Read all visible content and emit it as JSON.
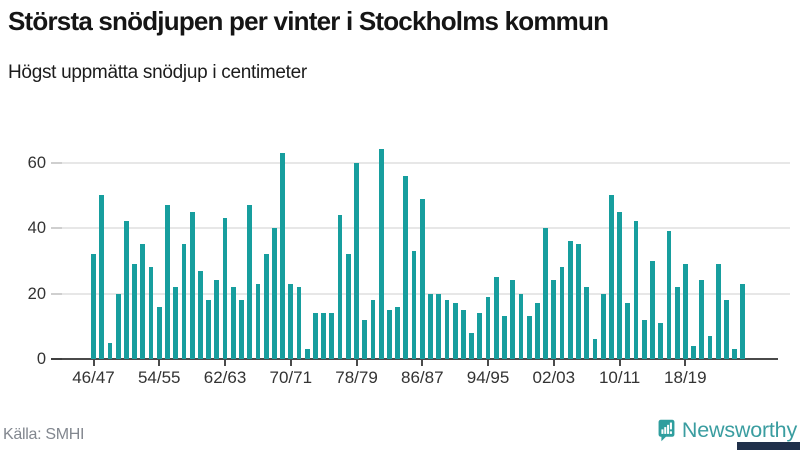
{
  "header": {
    "title": "Största snödjupen per vinter i Stockholms kommun",
    "subtitle": "Högst uppmätta snödjup i centimeter"
  },
  "chart_data": {
    "type": "bar",
    "title": "Största snödjupen per vinter i Stockholms kommun",
    "subtitle": "Högst uppmätta snödjup i centimeter",
    "xlabel": "",
    "ylabel": "cm",
    "ylim": [
      0,
      65
    ],
    "grid": true,
    "legend_position": "none",
    "bar_color": "#179e9e",
    "y_ticks": [
      0,
      20,
      40,
      60
    ],
    "x_tick_labels": [
      "46/47",
      "54/55",
      "62/63",
      "70/71",
      "78/79",
      "86/87",
      "94/95",
      "02/03",
      "10/11",
      "18/19"
    ],
    "x_tick_every": 8,
    "categories": [
      "46/47",
      "47/48",
      "48/49",
      "49/50",
      "50/51",
      "51/52",
      "52/53",
      "53/54",
      "54/55",
      "55/56",
      "56/57",
      "57/58",
      "58/59",
      "59/60",
      "60/61",
      "61/62",
      "62/63",
      "63/64",
      "64/65",
      "65/66",
      "66/67",
      "67/68",
      "68/69",
      "69/70",
      "70/71",
      "71/72",
      "72/73",
      "73/74",
      "74/75",
      "75/76",
      "76/77",
      "77/78",
      "78/79",
      "79/80",
      "80/81",
      "81/82",
      "82/83",
      "83/84",
      "84/85",
      "85/86",
      "86/87",
      "87/88",
      "88/89",
      "89/90",
      "90/91",
      "91/92",
      "92/93",
      "93/94",
      "94/95",
      "95/96",
      "96/97",
      "97/98",
      "98/99",
      "99/00",
      "00/01",
      "01/02",
      "02/03",
      "03/04",
      "04/05",
      "05/06",
      "06/07",
      "07/08",
      "08/09",
      "09/10",
      "10/11",
      "11/12",
      "12/13",
      "13/14",
      "14/15",
      "15/16",
      "16/17",
      "17/18",
      "18/19",
      "19/20",
      "20/21",
      "21/22",
      "22/23",
      "23/24",
      "24/25",
      "25/26"
    ],
    "values": [
      32,
      50,
      5,
      20,
      42,
      29,
      35,
      28,
      16,
      47,
      22,
      35,
      45,
      27,
      18,
      24,
      43,
      22,
      18,
      47,
      23,
      32,
      40,
      63,
      23,
      22,
      3,
      14,
      14,
      14,
      44,
      32,
      60,
      12,
      18,
      64,
      15,
      16,
      56,
      33,
      49,
      20,
      20,
      18,
      17,
      15,
      8,
      14,
      19,
      25,
      13,
      24,
      20,
      13,
      17,
      40,
      24,
      28,
      36,
      35,
      22,
      6,
      20,
      50,
      45,
      17,
      42,
      12,
      30,
      11,
      39,
      22,
      29,
      4,
      24,
      7,
      29,
      18,
      3,
      23
    ]
  },
  "footer": {
    "source_label": "Källa: SMHI",
    "brand_name": "Newsworthy"
  },
  "colors": {
    "bar": "#179e9e",
    "brand_teal": "#2f9e9e",
    "brand_text": "#3a9da0",
    "corner_navy": "#20304a",
    "grid": "#e7e7e7",
    "axis": "#4a4a4a",
    "tick_text": "#333333",
    "source_text": "#82878f"
  }
}
